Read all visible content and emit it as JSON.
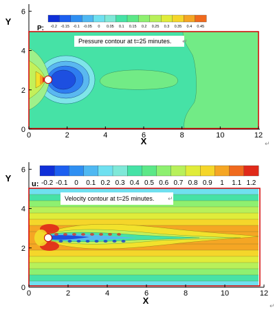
{
  "chart_data": [
    {
      "type": "heatmap",
      "name": "pressure",
      "xlabel": "X",
      "ylabel": "Y",
      "xlim": [
        0,
        12
      ],
      "ylim": [
        0,
        6.5
      ],
      "xticks": [
        "0",
        "2",
        "4",
        "6",
        "8",
        "10",
        "12"
      ],
      "yticks": [
        "0",
        "2",
        "4",
        "6"
      ],
      "colorbar_label": "P:",
      "colorbar_levels": [
        "-0.2",
        "-0.15",
        "-0.1",
        "-0.05",
        "0",
        "0.05",
        "0.1",
        "0.15",
        "0.2",
        "0.25",
        "0.3",
        "0.35",
        "0.4",
        "0.45"
      ],
      "annotation": "Pressure contour at t=25 minutes.",
      "domain": {
        "x": [
          0,
          12
        ],
        "y": [
          0,
          5
        ]
      },
      "cylinder": {
        "x": 1,
        "y": 2.5,
        "r": 0.18
      }
    },
    {
      "type": "heatmap",
      "name": "velocity",
      "xlabel": "X",
      "ylabel": "Y",
      "xlim": [
        0,
        12
      ],
      "ylim": [
        0,
        6.5
      ],
      "xticks": [
        "0",
        "2",
        "4",
        "6",
        "8",
        "10",
        "12"
      ],
      "yticks": [
        "0",
        "2",
        "4",
        "6"
      ],
      "colorbar_label": "u:",
      "colorbar_levels": [
        "-0.2",
        "-0.1",
        "0",
        "0.1",
        "0.2",
        "0.3",
        "0.4",
        "0.5",
        "0.6",
        "0.7",
        "0.8",
        "0.9",
        "1",
        "1.1",
        "1.2"
      ],
      "annotation": "Velocity contour at t=25 minutes.",
      "domain": {
        "x": [
          0,
          12
        ],
        "y": [
          0,
          5
        ]
      },
      "cylinder": {
        "x": 1,
        "y": 2.5,
        "r": 0.18
      }
    }
  ],
  "colors": {
    "frame": "#d40000",
    "cylinder": "#ffffff",
    "pressure_bg": "#46e2a6",
    "pressure_wake_blob": "#72eb86",
    "velocity_wall": "#8ee05a",
    "velocity_core": "#f59a24"
  },
  "paragraph_mark": "↵"
}
